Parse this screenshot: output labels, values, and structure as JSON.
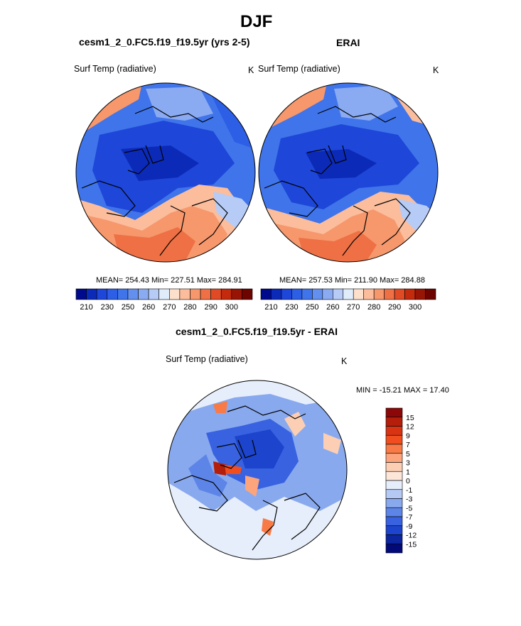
{
  "figure": {
    "title": "DJF",
    "left_panel_title": "cesm1_2_0.FC5.f19_f19.5yr (yrs 2-5)",
    "right_panel_title": "ERAI",
    "diff_title": "cesm1_2_0.FC5.f19_f19.5yr - ERAI"
  },
  "panels": {
    "left": {
      "variable": "Surf Temp (radiative)",
      "units": "K",
      "stats": "MEAN= 254.43  Min= 227.51  Max= 284.91"
    },
    "right": {
      "variable": "Surf Temp (radiative)",
      "units": "K",
      "stats": "MEAN= 257.53  Min= 211.90  Max= 284.88"
    },
    "diff": {
      "variable": "Surf Temp (radiative)",
      "units": "K",
      "stats": "MIN = -15.21 MAX =  17.40"
    }
  },
  "chart_data": [
    {
      "type": "heatmap",
      "title": "cesm1_2_0.FC5.f19_f19.5yr (yrs 2-5)",
      "subtitle": "Surf Temp (radiative)",
      "units": "K",
      "projection": "north polar stereographic",
      "mean": 254.43,
      "min": 227.51,
      "max": 284.91,
      "colorbar": {
        "orientation": "horizontal",
        "ticks": [
          210,
          230,
          250,
          260,
          270,
          280,
          290,
          300
        ],
        "levels": [
          210,
          220,
          230,
          240,
          250,
          255,
          260,
          265,
          270,
          275,
          280,
          285,
          290,
          295,
          300
        ]
      }
    },
    {
      "type": "heatmap",
      "title": "ERAI",
      "subtitle": "Surf Temp (radiative)",
      "units": "K",
      "projection": "north polar stereographic",
      "mean": 257.53,
      "min": 211.9,
      "max": 284.88,
      "colorbar": {
        "orientation": "horizontal",
        "ticks": [
          210,
          230,
          250,
          260,
          270,
          280,
          290,
          300
        ],
        "levels": [
          210,
          220,
          230,
          240,
          250,
          255,
          260,
          265,
          270,
          275,
          280,
          285,
          290,
          295,
          300
        ]
      }
    },
    {
      "type": "heatmap",
      "title": "cesm1_2_0.FC5.f19_f19.5yr - ERAI",
      "subtitle": "Surf Temp (radiative)",
      "units": "K",
      "projection": "north polar stereographic",
      "min": -15.21,
      "max": 17.4,
      "colorbar": {
        "orientation": "vertical",
        "ticks": [
          15,
          12,
          9,
          7,
          5,
          3,
          1,
          0,
          -1,
          -3,
          -5,
          -7,
          -9,
          -12,
          -15
        ]
      }
    }
  ],
  "colors": {
    "abs_scale": [
      "#000a8c",
      "#0c2ab8",
      "#1e46d8",
      "#2c5ee6",
      "#3f74ea",
      "#6390ee",
      "#8aaaf2",
      "#b6ccf6",
      "#e0ecfa",
      "#fde0cc",
      "#fbbd9c",
      "#f6976c",
      "#ee7044",
      "#e04a24",
      "#c42a0c",
      "#981404",
      "#6e0400"
    ],
    "diff_scale": [
      "#8c0808",
      "#b41e0a",
      "#d83414",
      "#f04e1e",
      "#f87a46",
      "#fca47c",
      "#fccfb4",
      "#fde6d8",
      "#e6eefb",
      "#b4c9f4",
      "#89a9ee",
      "#5d85e8",
      "#3862e0",
      "#1c44cc",
      "#0c26a0",
      "#020a7a"
    ],
    "land_outline": "#000000"
  }
}
